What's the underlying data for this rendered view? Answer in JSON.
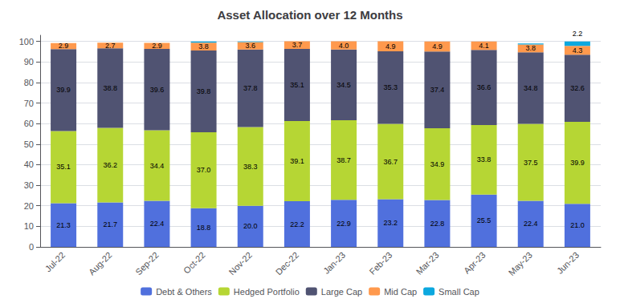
{
  "chart_data": {
    "type": "bar",
    "title": "Asset Allocation over 12 Months",
    "categories": [
      "Jul-22",
      "Aug-22",
      "Sep-22",
      "Oct-22",
      "Nov-22",
      "Dec-22",
      "Jan-23",
      "Feb-23",
      "Mar-23",
      "Apr-23",
      "May-23",
      "Jun-23"
    ],
    "series": [
      {
        "name": "Debt & Others",
        "values": [
          21.3,
          21.7,
          22.4,
          18.8,
          20.0,
          22.2,
          22.9,
          23.2,
          22.8,
          25.5,
          22.4,
          21.0
        ],
        "value_labels": [
          "21.3",
          "21.7",
          "22.4",
          "18.8",
          "20.0",
          "22.2",
          "22.9",
          "23.2",
          "22.8",
          "25.5",
          "22.4",
          "21.0"
        ]
      },
      {
        "name": "Hedged Portfolio",
        "values": [
          35.1,
          36.2,
          34.4,
          37.0,
          38.3,
          39.1,
          38.7,
          36.7,
          34.9,
          33.8,
          37.5,
          39.9
        ],
        "value_labels": [
          "35.1",
          "36.2",
          "34.4",
          "37.0",
          "38.3",
          "39.1",
          "38.7",
          "36.7",
          "34.9",
          "33.8",
          "37.5",
          "39.9"
        ]
      },
      {
        "name": "Large Cap",
        "values": [
          39.9,
          38.8,
          39.6,
          39.8,
          37.8,
          35.1,
          34.5,
          35.3,
          37.4,
          36.6,
          34.8,
          32.6
        ],
        "value_labels": [
          "39.9",
          "38.8",
          "39.6",
          "39.8",
          "37.8",
          "35.1",
          "34.5",
          "35.3",
          "37.4",
          "36.6",
          "34.8",
          "32.6"
        ]
      },
      {
        "name": "Mid Cap",
        "values": [
          2.9,
          2.7,
          2.9,
          3.8,
          3.6,
          3.7,
          4.0,
          4.9,
          4.9,
          4.1,
          3.8,
          4.3
        ],
        "value_labels": [
          "2.9",
          "2.7",
          "2.9",
          "3.8",
          "3.6",
          "3.7",
          "4.0",
          "4.9",
          "4.9",
          "4.1",
          "3.8",
          "4.3"
        ]
      },
      {
        "name": "Small Cap",
        "values": [
          0.0,
          0.0,
          0.0,
          0.6,
          0.3,
          0.0,
          0.0,
          0.0,
          0.0,
          0.0,
          0.5,
          2.2
        ],
        "value_labels": [
          null,
          null,
          null,
          null,
          null,
          null,
          null,
          null,
          null,
          null,
          null,
          "2.2"
        ]
      }
    ],
    "stacked": true,
    "data_labels": true,
    "ylim": [
      0,
      103
    ],
    "yticks": [
      0,
      10,
      20,
      30,
      40,
      50,
      60,
      70,
      80,
      90,
      100
    ],
    "grid": true,
    "legend": "bottom"
  }
}
